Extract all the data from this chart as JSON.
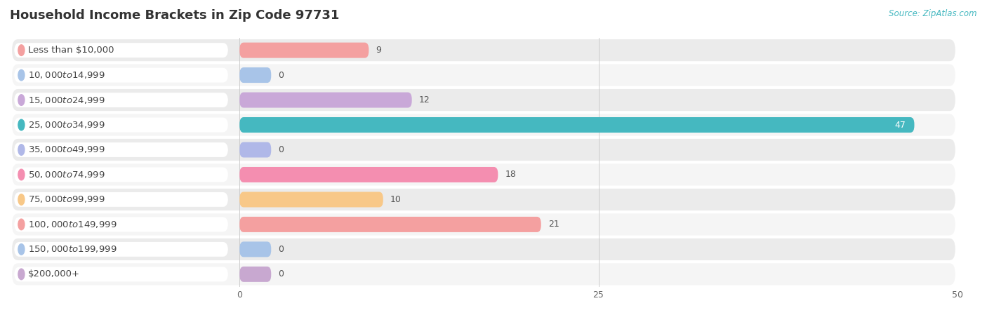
{
  "title": "Household Income Brackets in Zip Code 97731",
  "source": "Source: ZipAtlas.com",
  "categories": [
    "Less than $10,000",
    "$10,000 to $14,999",
    "$15,000 to $24,999",
    "$25,000 to $34,999",
    "$35,000 to $49,999",
    "$50,000 to $74,999",
    "$75,000 to $99,999",
    "$100,000 to $149,999",
    "$150,000 to $199,999",
    "$200,000+"
  ],
  "values": [
    9,
    0,
    12,
    47,
    0,
    18,
    10,
    21,
    0,
    0
  ],
  "bar_colors": [
    "#F4A0A0",
    "#A8C4E8",
    "#C9A8D8",
    "#45B8C0",
    "#B0B8E8",
    "#F48EB0",
    "#F8C888",
    "#F4A0A0",
    "#A8C4E8",
    "#C8A8D0"
  ],
  "row_bg_colors": [
    "#EBEBEB",
    "#F5F5F5"
  ],
  "xlim_data": [
    0,
    50
  ],
  "xticks": [
    0,
    25,
    50
  ],
  "title_fontsize": 13,
  "label_fontsize": 9.5,
  "value_fontsize": 9,
  "bar_height": 0.62,
  "background_color": "#FFFFFF",
  "title_color": "#333333",
  "source_color": "#44B8C0",
  "label_color": "#444444",
  "value_color_dark": "#555555",
  "value_color_light": "#FFFFFF",
  "grid_color": "#CCCCCC",
  "stub_value": 2.2
}
